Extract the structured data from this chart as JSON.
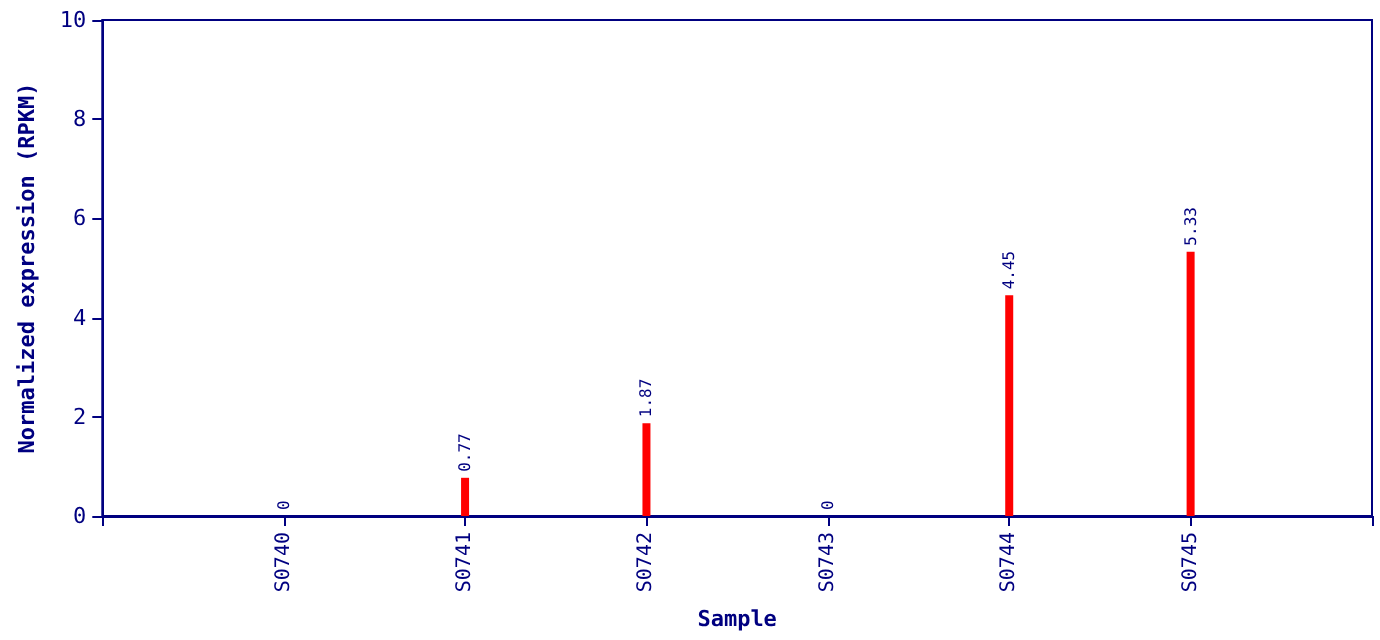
{
  "chart_data": {
    "type": "bar",
    "xlabel": "Sample",
    "ylabel": "Normalized expression (RPKM)",
    "categories": [
      "S0740",
      "S0741",
      "S0742",
      "S0743",
      "S0744",
      "S0745"
    ],
    "values": [
      0,
      0.77,
      1.87,
      0,
      4.45,
      5.33
    ],
    "color": "#ff0000",
    "ylim": [
      0,
      10
    ],
    "yticks": [
      0,
      2,
      4,
      6,
      8,
      10
    ],
    "grid": false,
    "data_labels": true
  }
}
